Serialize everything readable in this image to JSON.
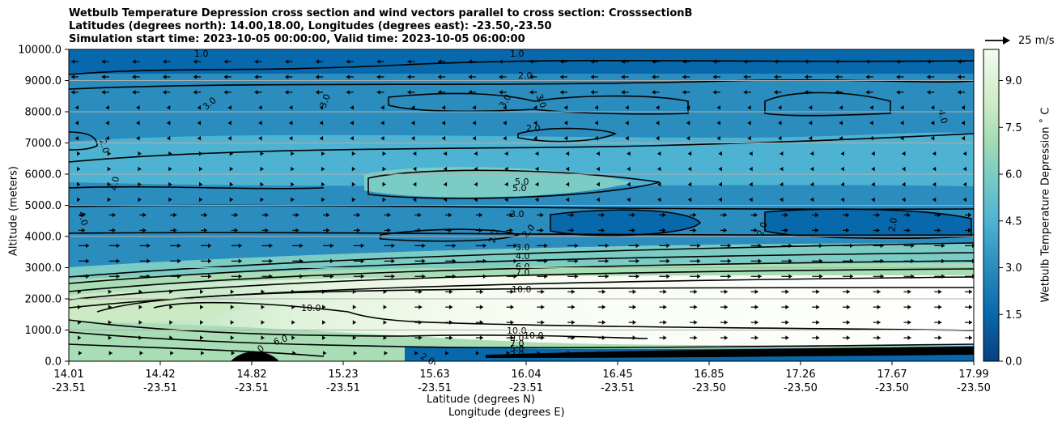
{
  "chart_data": {
    "type": "contour",
    "title_lines": [
      "Wetbulb Temperature Depression cross section and wind vectors parallel to cross section: CrosssectionB",
      "Latitudes (degrees north): 14.00,18.00, Longitudes (degrees east): -23.50,-23.50",
      "Simulation start time: 2023-10-05 00:00:00, Valid time: 2023-10-05 06:00:00"
    ],
    "ylabel": "Altitude (meters)",
    "xlabel_lines": [
      "Latitude (degrees N)",
      "Longitude (degrees E)"
    ],
    "ylim": [
      0,
      10000
    ],
    "y_ticks": [
      "0.0",
      "1000.0",
      "2000.0",
      "3000.0",
      "4000.0",
      "5000.0",
      "6000.0",
      "7000.0",
      "8000.0",
      "9000.0",
      "10000.0"
    ],
    "x_ticks": [
      {
        "lat": "14.01",
        "lon": "-23.51"
      },
      {
        "lat": "14.42",
        "lon": "-23.51"
      },
      {
        "lat": "14.82",
        "lon": "-23.51"
      },
      {
        "lat": "15.23",
        "lon": "-23.51"
      },
      {
        "lat": "15.63",
        "lon": "-23.51"
      },
      {
        "lat": "16.04",
        "lon": "-23.51"
      },
      {
        "lat": "16.45",
        "lon": "-23.51"
      },
      {
        "lat": "16.85",
        "lon": "-23.50"
      },
      {
        "lat": "17.26",
        "lon": "-23.50"
      },
      {
        "lat": "17.67",
        "lon": "-23.50"
      },
      {
        "lat": "17.99",
        "lon": "-23.50"
      }
    ],
    "colorbar": {
      "label": "Wetbulb Temperature Depression $^\\circ$ C",
      "label_text": "Wetbulb Temperature Depression ˚ C",
      "range": [
        0,
        10
      ],
      "ticks": [
        "0.0",
        "1.5",
        "3.0",
        "4.5",
        "6.0",
        "7.5",
        "9.0"
      ],
      "colormap": "GnBu_r",
      "colors": [
        "#084081",
        "#0868ac",
        "#2b8cbe",
        "#4eb3d3",
        "#7bccc4",
        "#a8ddb5",
        "#ccebc5",
        "#e0f3db",
        "#f7fcf0"
      ]
    },
    "contour_levels": [
      2.0,
      3.0,
      4.0,
      5.0,
      6.0,
      7.0,
      10.0
    ],
    "contour_labels_shown": [
      "1.0",
      "2.0",
      "3.0",
      "4.0",
      "5.0",
      "6.0",
      "7.0",
      "9.0",
      "10.0"
    ],
    "wind_key": {
      "label": "25 m/s"
    },
    "grid": "horizontal"
  }
}
